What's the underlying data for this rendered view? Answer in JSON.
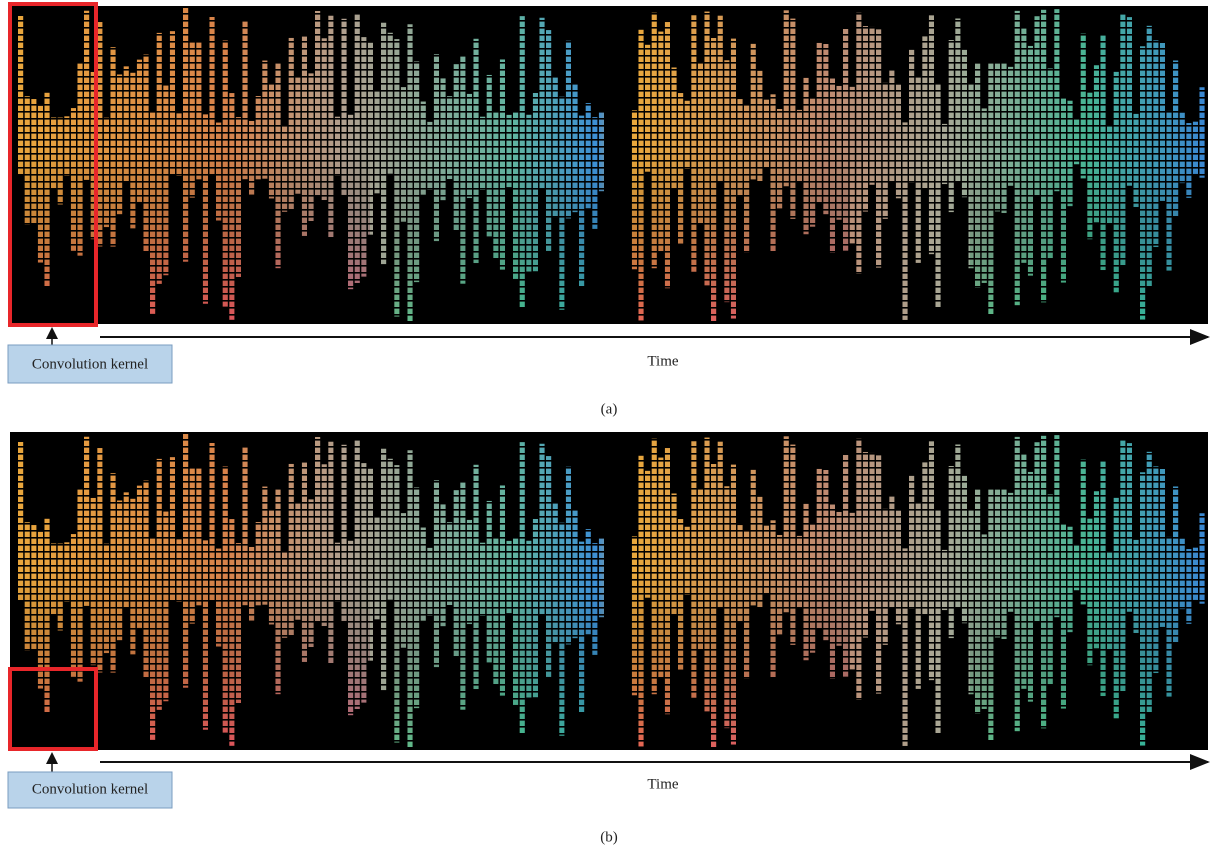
{
  "panels": [
    {
      "kernel_label": "Convolution kernel",
      "axis_label": "Time",
      "caption": "(a)"
    },
    {
      "kernel_label": "Convolution kernel",
      "axis_label": "Time",
      "caption": "(b)"
    }
  ]
}
